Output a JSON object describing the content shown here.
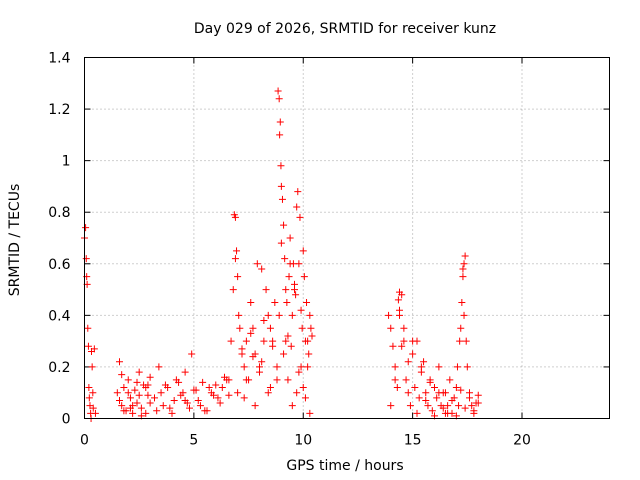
{
  "chart_data": {
    "type": "scatter",
    "title": "Day 029 of 2026, SRMTID for receiver kunz",
    "xlabel": "GPS time / hours",
    "ylabel": "SRMTID / TECUs",
    "xlim": [
      0,
      24
    ],
    "ylim": [
      0,
      1.4
    ],
    "xticks": [
      0,
      5,
      10,
      15,
      20
    ],
    "xtick_labels": [
      "0",
      "5",
      "10",
      "15",
      "20"
    ],
    "yticks": [
      0,
      0.2,
      0.4,
      0.6,
      0.8,
      1.0,
      1.2,
      1.4
    ],
    "ytick_labels": [
      "0",
      "0.2",
      "0.4",
      "0.6",
      "0.8",
      "1",
      "1.2",
      "1.4"
    ],
    "grid": true,
    "marker": "+",
    "color": "#ff0000",
    "series": [
      {
        "name": "SRMTID",
        "x": [
          0.0,
          0.05,
          0.08,
          0.1,
          0.12,
          0.15,
          0.18,
          0.2,
          0.22,
          0.25,
          0.28,
          0.3,
          0.32,
          0.35,
          0.38,
          0.4,
          0.45,
          0.5,
          1.5,
          1.6,
          1.7,
          1.8,
          1.9,
          2.0,
          2.1,
          2.2,
          2.3,
          2.4,
          2.5,
          2.6,
          2.7,
          2.8,
          2.9,
          3.0,
          1.6,
          1.8,
          2.0,
          2.2,
          2.4,
          2.6,
          2.8,
          3.0,
          1.7,
          2.1,
          2.5,
          2.9,
          3.2,
          3.4,
          3.6,
          3.8,
          4.0,
          4.2,
          4.4,
          4.6,
          4.8,
          5.0,
          5.2,
          5.4,
          5.6,
          5.8,
          6.0,
          6.2,
          6.4,
          6.6,
          3.3,
          3.7,
          4.1,
          4.5,
          4.9,
          5.3,
          5.7,
          6.1,
          6.5,
          3.5,
          3.9,
          4.3,
          4.7,
          5.1,
          5.5,
          5.9,
          6.3,
          4.6,
          6.6,
          6.7,
          6.8,
          6.85,
          6.9,
          6.95,
          7.0,
          7.05,
          7.1,
          7.2,
          7.3,
          7.4,
          7.5,
          7.6,
          7.7,
          7.8,
          7.9,
          8.0,
          8.1,
          8.2,
          8.3,
          8.4,
          8.5,
          8.6,
          8.7,
          8.8,
          7.0,
          7.2,
          7.4,
          7.6,
          7.8,
          8.0,
          8.2,
          8.4,
          8.6,
          8.8,
          6.9,
          7.3,
          7.7,
          8.1,
          8.5,
          8.85,
          8.9,
          8.92,
          8.95,
          8.98,
          9.0,
          9.05,
          9.1,
          9.15,
          9.2,
          9.25,
          9.3,
          9.35,
          9.4,
          9.45,
          9.5,
          9.55,
          9.6,
          9.65,
          9.7,
          9.75,
          9.8,
          9.85,
          9.9,
          9.95,
          10.0,
          10.05,
          10.1,
          10.15,
          10.2,
          10.25,
          10.3,
          10.35,
          10.4,
          8.9,
          9.1,
          9.3,
          9.5,
          9.7,
          9.9,
          10.1,
          10.3,
          9.0,
          9.2,
          9.4,
          9.6,
          9.8,
          10.0,
          10.2,
          13.9,
          14.0,
          14.1,
          14.2,
          14.3,
          14.4,
          14.5,
          14.6,
          14.7,
          14.8,
          14.9,
          15.0,
          15.1,
          15.2,
          15.3,
          15.4,
          15.5,
          15.6,
          15.7,
          15.8,
          15.9,
          16.0,
          16.1,
          16.2,
          16.3,
          16.4,
          16.5,
          14.0,
          14.2,
          14.4,
          14.6,
          14.8,
          15.0,
          15.2,
          15.4,
          15.6,
          15.8,
          16.0,
          16.2,
          16.4,
          14.35,
          14.4,
          14.5,
          16.5,
          16.6,
          16.7,
          16.8,
          16.9,
          17.0,
          17.05,
          17.1,
          17.15,
          17.2,
          17.25,
          17.3,
          17.35,
          17.4,
          17.45,
          17.5,
          17.6,
          17.7,
          17.8,
          17.9,
          18.0,
          16.6,
          16.8,
          17.0,
          17.2,
          17.4,
          17.6,
          17.8,
          18.0,
          17.3,
          17.35
        ],
        "y": [
          0.7,
          0.74,
          0.62,
          0.55,
          0.52,
          0.35,
          0.28,
          0.12,
          0.08,
          0.05,
          0.02,
          0.0,
          0.26,
          0.2,
          0.1,
          0.04,
          0.27,
          0.02,
          0.1,
          0.22,
          0.05,
          0.12,
          0.03,
          0.15,
          0.08,
          0.02,
          0.11,
          0.06,
          0.18,
          0.04,
          0.13,
          0.02,
          0.09,
          0.16,
          0.07,
          0.03,
          0.1,
          0.05,
          0.14,
          0.01,
          0.12,
          0.06,
          0.17,
          0.04,
          0.09,
          0.13,
          0.08,
          0.2,
          0.05,
          0.12,
          0.02,
          0.15,
          0.09,
          0.18,
          0.04,
          0.11,
          0.07,
          0.14,
          0.03,
          0.1,
          0.13,
          0.06,
          0.16,
          0.09,
          0.03,
          0.13,
          0.07,
          0.1,
          0.25,
          0.05,
          0.12,
          0.08,
          0.15,
          0.1,
          0.04,
          0.14,
          0.06,
          0.11,
          0.03,
          0.09,
          0.12,
          0.07,
          0.15,
          0.3,
          0.5,
          0.79,
          0.78,
          0.65,
          0.55,
          0.4,
          0.35,
          0.25,
          0.2,
          0.3,
          0.15,
          0.45,
          0.35,
          0.25,
          0.6,
          0.18,
          0.22,
          0.3,
          0.5,
          0.4,
          0.12,
          0.28,
          0.45,
          0.2,
          0.1,
          0.27,
          0.15,
          0.33,
          0.05,
          0.2,
          0.38,
          0.1,
          0.3,
          0.15,
          0.62,
          0.08,
          0.24,
          0.58,
          0.35,
          1.27,
          1.24,
          1.1,
          1.15,
          0.98,
          0.9,
          0.85,
          0.75,
          0.62,
          0.5,
          0.45,
          0.32,
          0.55,
          0.7,
          0.28,
          0.4,
          0.6,
          0.5,
          0.48,
          0.82,
          0.88,
          0.6,
          0.78,
          0.42,
          0.35,
          0.65,
          0.55,
          0.3,
          0.45,
          0.2,
          0.25,
          0.4,
          0.35,
          0.32,
          0.4,
          0.25,
          0.15,
          0.05,
          0.1,
          0.2,
          0.08,
          0.02,
          0.68,
          0.3,
          0.6,
          0.52,
          0.18,
          0.12,
          0.3,
          0.4,
          0.35,
          0.28,
          0.2,
          0.12,
          0.49,
          0.48,
          0.3,
          0.15,
          0.22,
          0.05,
          0.25,
          0.12,
          0.3,
          0.08,
          0.18,
          0.22,
          0.1,
          0.05,
          0.15,
          0.03,
          0.12,
          0.08,
          0.2,
          0.05,
          0.1,
          0.02,
          0.05,
          0.15,
          0.42,
          0.35,
          0.1,
          0.3,
          0.02,
          0.2,
          0.07,
          0.14,
          0.01,
          0.1,
          0.04,
          0.46,
          0.4,
          0.28,
          0.1,
          0.05,
          0.15,
          0.02,
          0.08,
          0.12,
          0.2,
          0.05,
          0.3,
          0.35,
          0.45,
          0.55,
          0.6,
          0.63,
          0.3,
          0.2,
          0.1,
          0.05,
          0.03,
          0.06,
          0.09,
          0.02,
          0.07,
          0.01,
          0.11,
          0.04,
          0.08,
          0.02,
          0.06,
          0.58,
          0.4
        ]
      }
    ]
  }
}
